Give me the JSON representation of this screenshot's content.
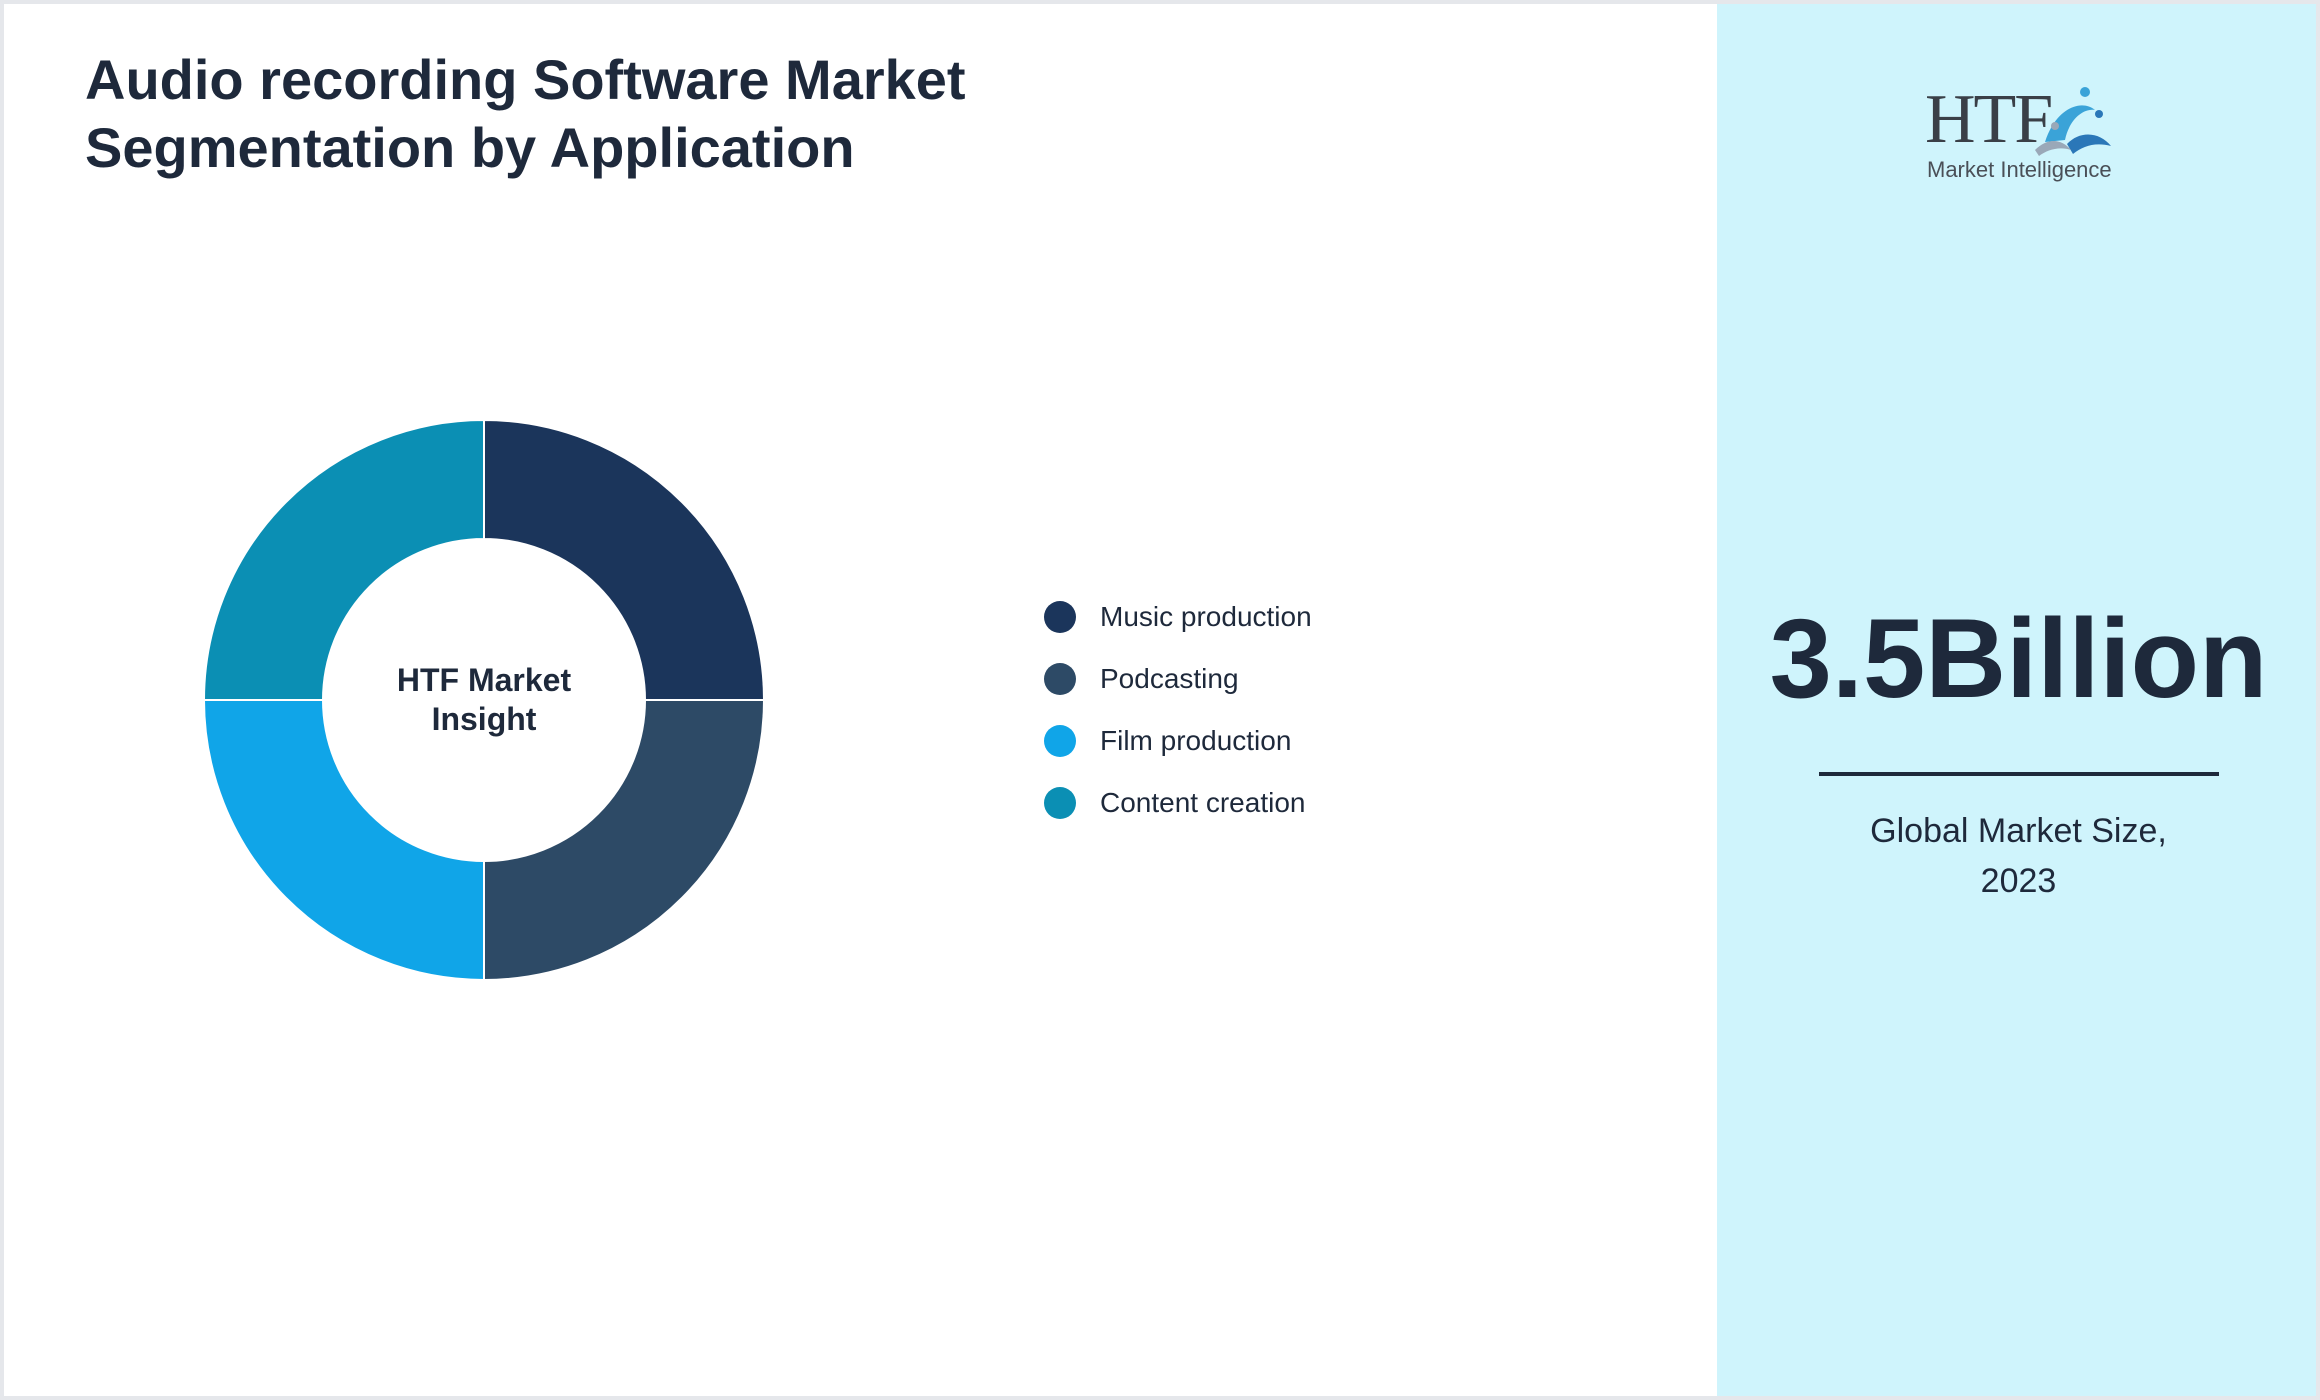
{
  "title": {
    "line1": "Audio recording Software Market",
    "line2": "Segmentation by Application"
  },
  "chart_data": {
    "type": "pie",
    "title": "Audio recording Software Market Segmentation by Application",
    "center_label": {
      "line1": "HTF Market",
      "line2": "Insight"
    },
    "categories": [
      "Music production",
      "Podcasting",
      "Film production",
      "Content creation"
    ],
    "values": [
      25,
      25,
      25,
      25
    ],
    "colors": [
      "#1b355b",
      "#2d4a66",
      "#10a5e8",
      "#0b8fb4"
    ],
    "legend_position": "right"
  },
  "side_panel": {
    "logo": {
      "brand": "HTF",
      "tagline": "Market Intelligence",
      "icon": "htf-logo-icon"
    },
    "value": "3.5Billion",
    "caption_line1": "Global Market Size,",
    "caption_line2": "2023"
  },
  "colors": {
    "panel_bg": "#cff4fc",
    "text": "#1e293b"
  }
}
